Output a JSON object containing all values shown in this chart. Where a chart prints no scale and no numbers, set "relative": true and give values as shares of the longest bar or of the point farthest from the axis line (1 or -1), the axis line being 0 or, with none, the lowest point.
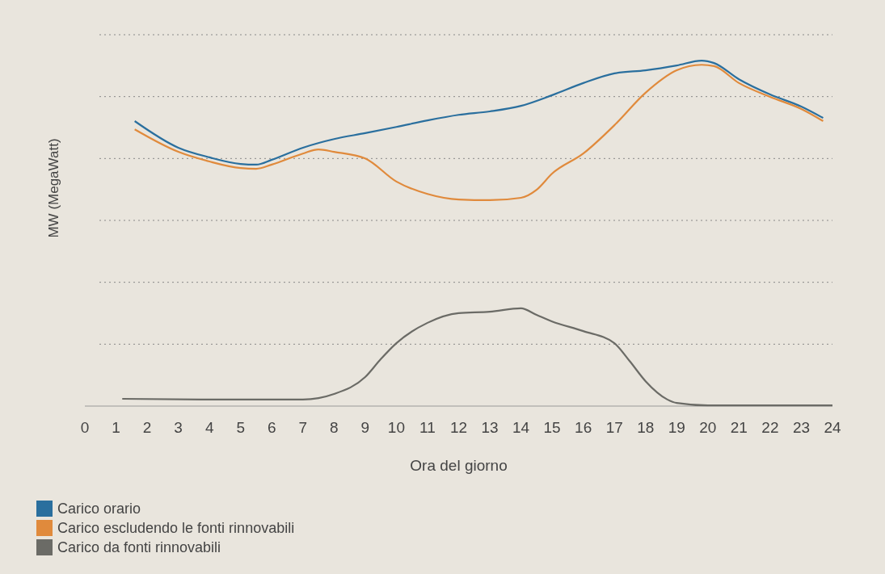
{
  "chart_data": {
    "type": "line",
    "relative": true,
    "xlabel": "Ora del giorno",
    "ylabel": "MW (MegaWatt)",
    "xlim": [
      0,
      24
    ],
    "xticks": [
      0,
      1,
      2,
      3,
      4,
      5,
      6,
      7,
      8,
      9,
      10,
      11,
      12,
      13,
      14,
      15,
      16,
      17,
      18,
      19,
      20,
      21,
      22,
      23,
      24
    ],
    "grid": "y",
    "legend": "bottom left",
    "line_style": "solid",
    "marker": "none",
    "series": [
      {
        "name": "Carico orario",
        "color": "#2a6f9e",
        "x": [
          1.6,
          3,
          4,
          5,
          5.5,
          6,
          7,
          8,
          9,
          10,
          11,
          12,
          13,
          14,
          15,
          16,
          17,
          18,
          19,
          19.8,
          20.2,
          21,
          22,
          23,
          23.7
        ],
        "values": [
          0.825,
          0.748,
          0.72,
          0.701,
          0.699,
          0.713,
          0.748,
          0.773,
          0.79,
          0.808,
          0.827,
          0.843,
          0.853,
          0.869,
          0.9,
          0.935,
          0.963,
          0.972,
          0.986,
          1.0,
          0.993,
          0.946,
          0.902,
          0.867,
          0.834
        ]
      },
      {
        "name": "Carico escludendo le fonti rinnovabili",
        "color": "#e08a3c",
        "x": [
          1.6,
          3,
          4,
          5,
          5.5,
          6,
          7,
          7.5,
          8,
          9,
          10,
          11,
          12,
          13,
          14,
          14.5,
          15,
          16,
          17,
          18,
          19,
          19.8,
          20.2,
          21,
          22,
          23,
          23.7
        ],
        "values": [
          0.801,
          0.736,
          0.708,
          0.689,
          0.687,
          0.699,
          0.731,
          0.743,
          0.736,
          0.717,
          0.65,
          0.614,
          0.598,
          0.596,
          0.603,
          0.626,
          0.673,
          0.731,
          0.813,
          0.907,
          0.972,
          0.988,
          0.984,
          0.935,
          0.895,
          0.86,
          0.825
        ]
      },
      {
        "name": "Carico da fonti rinnovabili",
        "color": "#6b6b66",
        "x": [
          1.2,
          4,
          7,
          7.5,
          8,
          9,
          9.5,
          10,
          11,
          12,
          13,
          14,
          14.5,
          15,
          16,
          17,
          17.5,
          18,
          18.7,
          19,
          20,
          24
        ],
        "values": [
          0.021,
          0.019,
          0.019,
          0.023,
          0.035,
          0.084,
          0.136,
          0.182,
          0.241,
          0.269,
          0.273,
          0.283,
          0.264,
          0.245,
          0.217,
          0.182,
          0.129,
          0.072,
          0.019,
          0.009,
          0.002,
          0.002
        ]
      }
    ]
  }
}
